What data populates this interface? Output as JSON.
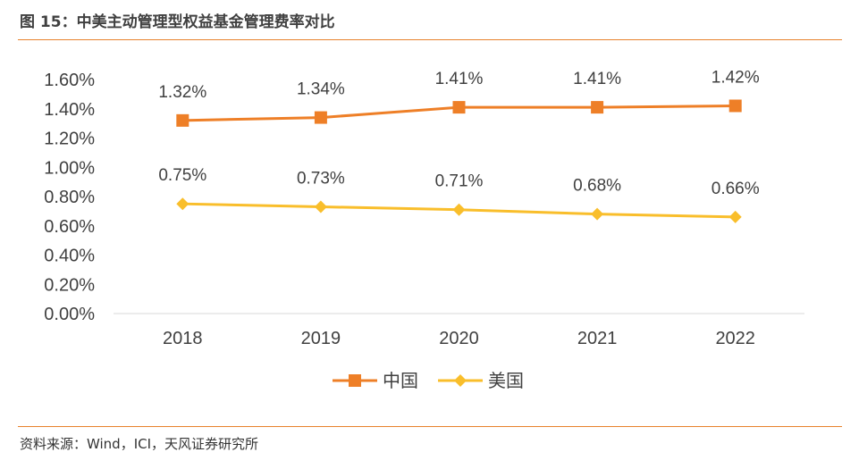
{
  "figure": {
    "title": "图 15：中美主动管理型权益基金管理费率对比",
    "source": "资料来源：Wind，ICI，天风证券研究所"
  },
  "chart_data": {
    "type": "line",
    "title": "",
    "xlabel": "",
    "ylabel": "",
    "categories": [
      "2018",
      "2019",
      "2020",
      "2021",
      "2022"
    ],
    "series": [
      {
        "name": "中国",
        "values": [
          1.32,
          1.34,
          1.41,
          1.41,
          1.42
        ],
        "labels": [
          "1.32%",
          "1.34%",
          "1.41%",
          "1.41%",
          "1.42%"
        ],
        "color": "#EE7F27",
        "marker": "square"
      },
      {
        "name": "美国",
        "values": [
          0.75,
          0.73,
          0.71,
          0.68,
          0.66
        ],
        "labels": [
          "0.75%",
          "0.73%",
          "0.71%",
          "0.68%",
          "0.66%"
        ],
        "color": "#F9BE2B",
        "marker": "diamond"
      }
    ],
    "yticks": [
      "0.00%",
      "0.20%",
      "0.40%",
      "0.60%",
      "0.80%",
      "1.00%",
      "1.20%",
      "1.40%",
      "1.60%"
    ],
    "ylim": [
      0,
      1.6
    ],
    "grid": false,
    "legend_position": "bottom"
  }
}
